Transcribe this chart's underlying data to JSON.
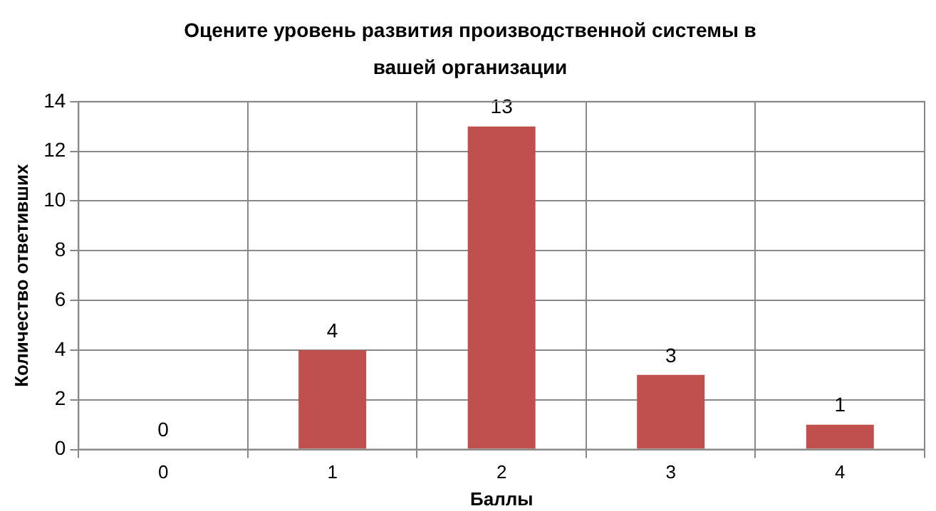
{
  "chart_data": {
    "type": "bar",
    "title": "Оцените уровень развития производственной системы в вашей организации",
    "xlabel": "Баллы",
    "ylabel": "Количество ответивших",
    "categories": [
      "0",
      "1",
      "2",
      "3",
      "4"
    ],
    "values": [
      0,
      4,
      13,
      3,
      1
    ],
    "color": "#c0504d",
    "ylim": [
      0,
      14
    ],
    "yticks": [
      0,
      2,
      4,
      6,
      8,
      10,
      12,
      14
    ],
    "grid": true,
    "data_labels": true,
    "legend": false
  }
}
